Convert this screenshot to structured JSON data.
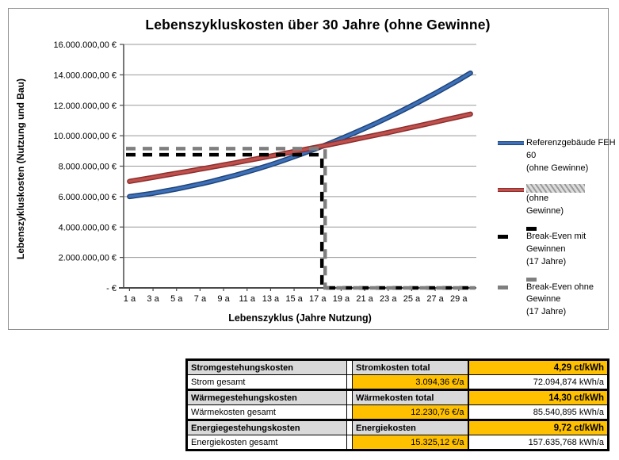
{
  "chart": {
    "title": "Lebenszykluskosten über 30 Jahre (ohne Gewinne)",
    "x_axis_title": "Lebenszyklus (Jahre Nutzung)",
    "y_axis_title": "Lebenszykluskosten (Nutzung und Bau)",
    "y_ticks": [
      {
        "label": "16.000.000,00 €",
        "value": 16000000
      },
      {
        "label": "14.000.000,00 €",
        "value": 14000000
      },
      {
        "label": "12.000.000,00 €",
        "value": 12000000
      },
      {
        "label": "10.000.000,00 €",
        "value": 10000000
      },
      {
        "label": "8.000.000,00 €",
        "value": 8000000
      },
      {
        "label": "6.000.000,00 €",
        "value": 6000000
      },
      {
        "label": "4.000.000,00 €",
        "value": 4000000
      },
      {
        "label": "2.000.000,00 €",
        "value": 2000000
      },
      {
        "label": "-   €",
        "value": 0
      }
    ],
    "x_ticks": [
      {
        "label": "1 a",
        "year": 1
      },
      {
        "label": "3 a",
        "year": 3
      },
      {
        "label": "5 a",
        "year": 5
      },
      {
        "label": "7 a",
        "year": 7
      },
      {
        "label": "9 a",
        "year": 9
      },
      {
        "label": "11 a",
        "year": 11
      },
      {
        "label": "13 a",
        "year": 13
      },
      {
        "label": "15 a",
        "year": 15
      },
      {
        "label": "17 a",
        "year": 17
      },
      {
        "label": "19 a",
        "year": 19
      },
      {
        "label": "21 a",
        "year": 21
      },
      {
        "label": "23 a",
        "year": 23
      },
      {
        "label": "25 a",
        "year": 25
      },
      {
        "label": "27 a",
        "year": 27
      },
      {
        "label": "29 a",
        "year": 29
      }
    ],
    "legend": [
      {
        "l1": "Referenzgebäude FEH 60",
        "l2": "(ohne Gewinne)"
      },
      {
        "l1": "(ohne",
        "l2": "Gewinne)",
        "name_redacted": true
      },
      {
        "l1": "Break-Even mit Gewinnen",
        "l2": "(17 Jahre)"
      },
      {
        "l1": "Break-Even ohne Gewinne",
        "l2": "(17 Jahre)"
      }
    ],
    "colors": {
      "blue": "#3E70B9",
      "blue_edge": "#1F4478",
      "red": "#C0504D",
      "red_edge": "#8C2F2D",
      "black_dash": "#000000",
      "gray_dash": "#7F7F7F",
      "gridline": "#999999",
      "axis": "#4a4a4a"
    }
  },
  "chart_data": {
    "type": "line",
    "title": "Lebenszykluskosten über 30 Jahre (ohne Gewinne)",
    "xlabel": "Lebenszyklus (Jahre Nutzung)",
    "ylabel": "Lebenszykluskosten (Nutzung und Bau)",
    "x": [
      1,
      2,
      3,
      4,
      5,
      6,
      7,
      8,
      9,
      10,
      11,
      12,
      13,
      14,
      15,
      16,
      17,
      18,
      19,
      20,
      21,
      22,
      23,
      24,
      25,
      26,
      27,
      28,
      29,
      30
    ],
    "ylim": [
      0,
      16000000
    ],
    "grid": true,
    "legend_position": "right",
    "series": [
      {
        "name": "Referenzgebäude FEH 60 (ohne Gewinne)",
        "style": "solid",
        "color": "#3E70B9",
        "edge": "#1F4478",
        "values": [
          6000000,
          6110000,
          6220000,
          6360000,
          6500000,
          6660000,
          6820000,
          7000000,
          7200000,
          7400000,
          7620000,
          7850000,
          8090000,
          8350000,
          8620000,
          8900000,
          9190000,
          9490000,
          9810000,
          10140000,
          10480000,
          10830000,
          11200000,
          11580000,
          11970000,
          12380000,
          12790000,
          13220000,
          13660000,
          14120000
        ]
      },
      {
        "name": "(ohne Gewinne)",
        "name_redacted": true,
        "style": "solid",
        "color": "#C0504D",
        "edge": "#8C2F2D",
        "values": [
          7000000,
          7130000,
          7260000,
          7400000,
          7530000,
          7660000,
          7800000,
          7940000,
          8080000,
          8220000,
          8370000,
          8510000,
          8660000,
          8810000,
          8960000,
          9110000,
          9260000,
          9410000,
          9570000,
          9730000,
          9890000,
          10050000,
          10210000,
          10380000,
          10550000,
          10720000,
          10890000,
          11070000,
          11240000,
          11420000
        ]
      },
      {
        "name": "Break-Even mit Gewinnen (17 Jahre)",
        "style": "dashed",
        "color": "#000000",
        "values": [
          8750000,
          8750000,
          8750000,
          8750000,
          8750000,
          8750000,
          8750000,
          8750000,
          8750000,
          8750000,
          8750000,
          8750000,
          8750000,
          8750000,
          8750000,
          8750000,
          8750000,
          0,
          0,
          0,
          0,
          0,
          0,
          0,
          0,
          0,
          0,
          0,
          0,
          0
        ]
      },
      {
        "name": "Break-Even ohne Gewinne (17 Jahre)",
        "style": "dashed",
        "color": "#7F7F7F",
        "values": [
          9150000,
          9150000,
          9150000,
          9150000,
          9150000,
          9150000,
          9150000,
          9150000,
          9150000,
          9150000,
          9150000,
          9150000,
          9150000,
          9150000,
          9150000,
          9150000,
          9150000,
          0,
          0,
          0,
          0,
          0,
          0,
          0,
          0,
          0,
          0,
          0,
          0,
          0
        ]
      }
    ]
  },
  "table": {
    "rows": [
      {
        "c0": "Stromgestehungskosten",
        "c1": "Stromkosten total",
        "c2": "4,29 ct/kWh"
      },
      {
        "c0": "Strom gesamt",
        "c1": "3.094,36 €/a",
        "c2": "72.094,874 kWh/a"
      },
      {
        "c0": "Wärmegestehungskosten",
        "c1": "Wärmekosten total",
        "c2": "14,30 ct/kWh"
      },
      {
        "c0": "Wärmekosten gesamt",
        "c1": "12.230,76 €/a",
        "c2": "85.540,895 kWh/a"
      },
      {
        "c0": "Energiegestehungskosten",
        "c1": "Energiekosten",
        "c2": "9,72 ct/kWh"
      },
      {
        "c0": "Energiekosten gesamt",
        "c1": "15.325,12 €/a",
        "c2": "157.635,768 kWh/a"
      }
    ]
  }
}
